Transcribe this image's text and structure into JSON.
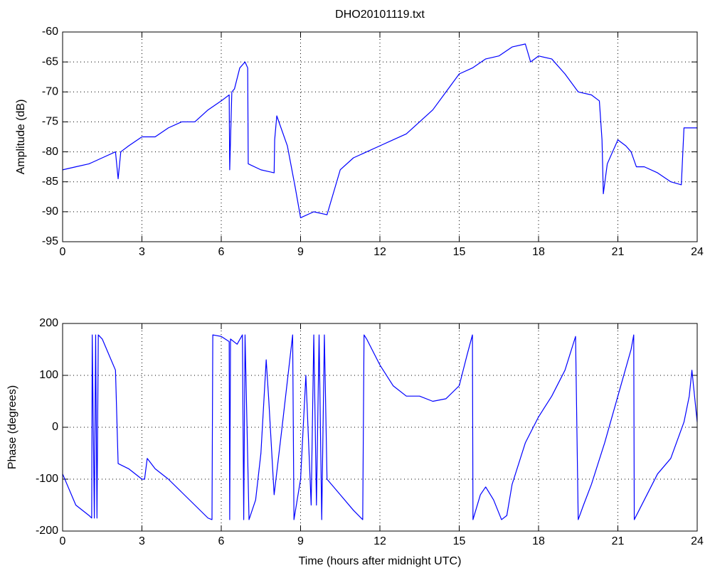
{
  "chart_data": [
    {
      "type": "line",
      "title": "DHO20101119.txt",
      "y_label": "Amplitude (dB)",
      "color": "#0000ff",
      "grid": true,
      "xlim": [
        0,
        24
      ],
      "xticks": [
        0,
        3,
        6,
        9,
        12,
        15,
        18,
        21,
        24
      ],
      "ylim": [
        -95,
        -60
      ],
      "yticks": [
        -95,
        -90,
        -85,
        -80,
        -75,
        -70,
        -65,
        -60
      ],
      "x": [
        0,
        0.5,
        1,
        1.5,
        2,
        2.1,
        2.2,
        2.5,
        3,
        3.5,
        4,
        4.5,
        5,
        5.5,
        6,
        6.3,
        6.32,
        6.4,
        6.5,
        6.7,
        6.9,
        7,
        7.02,
        7.5,
        8,
        8.02,
        8.1,
        8.5,
        8.8,
        9,
        9.5,
        10,
        10.3,
        10.5,
        11,
        11.5,
        12,
        12.5,
        13,
        13.5,
        14,
        14.5,
        15,
        15.5,
        16,
        16.5,
        17,
        17.5,
        17.7,
        18,
        18.5,
        19,
        19.5,
        20,
        20.3,
        20.4,
        20.45,
        20.6,
        21,
        21.3,
        21.5,
        21.7,
        22,
        22.5,
        23,
        23.4,
        23.5,
        24
      ],
      "values": [
        -83,
        -82.5,
        -82,
        -81,
        -80,
        -84.5,
        -80,
        -79,
        -77.5,
        -77.5,
        -76,
        -75,
        -75,
        -73,
        -71.5,
        -70.5,
        -83,
        -70,
        -69.5,
        -66,
        -65,
        -66,
        -82,
        -83,
        -83.5,
        -78,
        -74,
        -79,
        -86,
        -91,
        -90,
        -90.5,
        -86,
        -83,
        -81,
        -80,
        -79,
        -78,
        -77,
        -75,
        -73,
        -70,
        -67,
        -66,
        -64.5,
        -64,
        -62.5,
        -62,
        -65,
        -64,
        -64.5,
        -67,
        -70,
        -70.5,
        -71.5,
        -78,
        -87,
        -82,
        -78,
        -79,
        -80,
        -82.5,
        -82.5,
        -83.5,
        -85,
        -85.5,
        -76,
        -76
      ]
    },
    {
      "type": "line",
      "x_label": "Time (hours after midnight UTC)",
      "y_label": "Phase (degrees)",
      "color": "#0000ff",
      "grid": true,
      "xlim": [
        0,
        24
      ],
      "xticks": [
        0,
        3,
        6,
        9,
        12,
        15,
        18,
        21,
        24
      ],
      "ylim": [
        -200,
        200
      ],
      "yticks": [
        -200,
        -100,
        0,
        100,
        200
      ],
      "x": [
        0,
        0.5,
        1,
        1.1,
        1.12,
        1.2,
        1.25,
        1.3,
        1.35,
        1.5,
        2,
        2.1,
        2.5,
        3,
        3.1,
        3.2,
        3.5,
        4,
        4.5,
        5,
        5.5,
        5.65,
        5.68,
        6,
        6.3,
        6.32,
        6.35,
        6.6,
        6.8,
        6.85,
        6.9,
        7.05,
        7.3,
        7.5,
        7.7,
        7.8,
        8,
        8.3,
        8.7,
        8.75,
        9,
        9.2,
        9.4,
        9.5,
        9.6,
        9.7,
        9.8,
        9.9,
        10,
        10.5,
        11,
        11.35,
        11.4,
        11.5,
        12,
        12.5,
        13,
        13.5,
        14,
        14.5,
        15,
        15.3,
        15.5,
        15.52,
        15.8,
        16,
        16.3,
        16.6,
        16.8,
        17,
        17.5,
        18,
        18.5,
        19,
        19.4,
        19.5,
        19.7,
        20,
        20.5,
        21,
        21.5,
        21.6,
        21.62,
        22,
        22.5,
        23,
        23.5,
        23.7,
        23.8,
        24
      ],
      "values": [
        -90,
        -150,
        -170,
        -175,
        178,
        -175,
        178,
        -175,
        178,
        170,
        110,
        -70,
        -80,
        -100,
        -100,
        -60,
        -80,
        -100,
        -125,
        -150,
        -175,
        -178,
        178,
        175,
        165,
        -178,
        170,
        160,
        178,
        -178,
        178,
        -178,
        -140,
        -50,
        130,
        50,
        -130,
        0,
        178,
        -178,
        -100,
        100,
        -150,
        178,
        -150,
        178,
        -178,
        178,
        -100,
        -130,
        -160,
        -178,
        178,
        170,
        120,
        80,
        60,
        60,
        50,
        55,
        80,
        140,
        178,
        -178,
        -130,
        -115,
        -140,
        -178,
        -170,
        -110,
        -30,
        20,
        60,
        110,
        175,
        -178,
        -150,
        -110,
        -30,
        60,
        150,
        178,
        -178,
        -140,
        -90,
        -60,
        10,
        60,
        110,
        10
      ]
    }
  ]
}
